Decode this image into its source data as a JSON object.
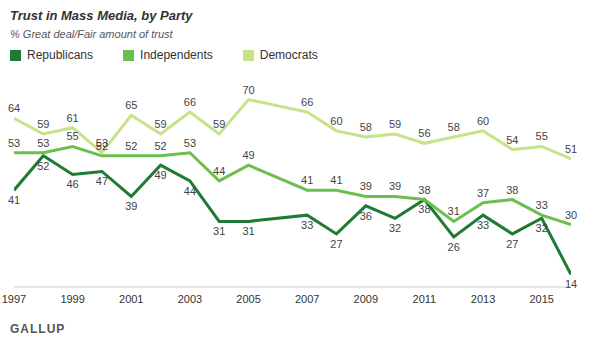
{
  "chart_data": {
    "type": "line",
    "title": "Trust in Mass Media, by Party",
    "subtitle": "% Great deal/Fair amount of trust",
    "source": "GALLUP",
    "x": [
      1997,
      1998,
      1999,
      2000,
      2001,
      2002,
      2003,
      2004,
      2005,
      2007,
      2008,
      2009,
      2010,
      2011,
      2012,
      2013,
      2014,
      2015,
      2016
    ],
    "xlim": [
      1997,
      2016
    ],
    "xticks": [
      1997,
      1999,
      2001,
      2003,
      2005,
      2007,
      2009,
      2011,
      2013,
      2015
    ],
    "ylim": [
      10,
      75
    ],
    "tick_labels": "x",
    "data_labels": true,
    "legend": "top-left",
    "series": [
      {
        "name": "Republicans",
        "color": "#1f7a33",
        "values": [
          41,
          52,
          46,
          47,
          39,
          49,
          44,
          31,
          31,
          33,
          27,
          36,
          32,
          38,
          26,
          33,
          27,
          32,
          14
        ]
      },
      {
        "name": "Independents",
        "color": "#6cbf4e",
        "values": [
          53,
          53,
          55,
          52,
          52,
          52,
          53,
          44,
          49,
          41,
          41,
          39,
          39,
          38,
          31,
          37,
          38,
          33,
          30
        ]
      },
      {
        "name": "Democrats",
        "color": "#c6e388",
        "values": [
          64,
          59,
          61,
          53,
          65,
          59,
          66,
          59,
          70,
          66,
          60,
          58,
          59,
          56,
          58,
          60,
          54,
          55,
          51
        ]
      }
    ]
  }
}
